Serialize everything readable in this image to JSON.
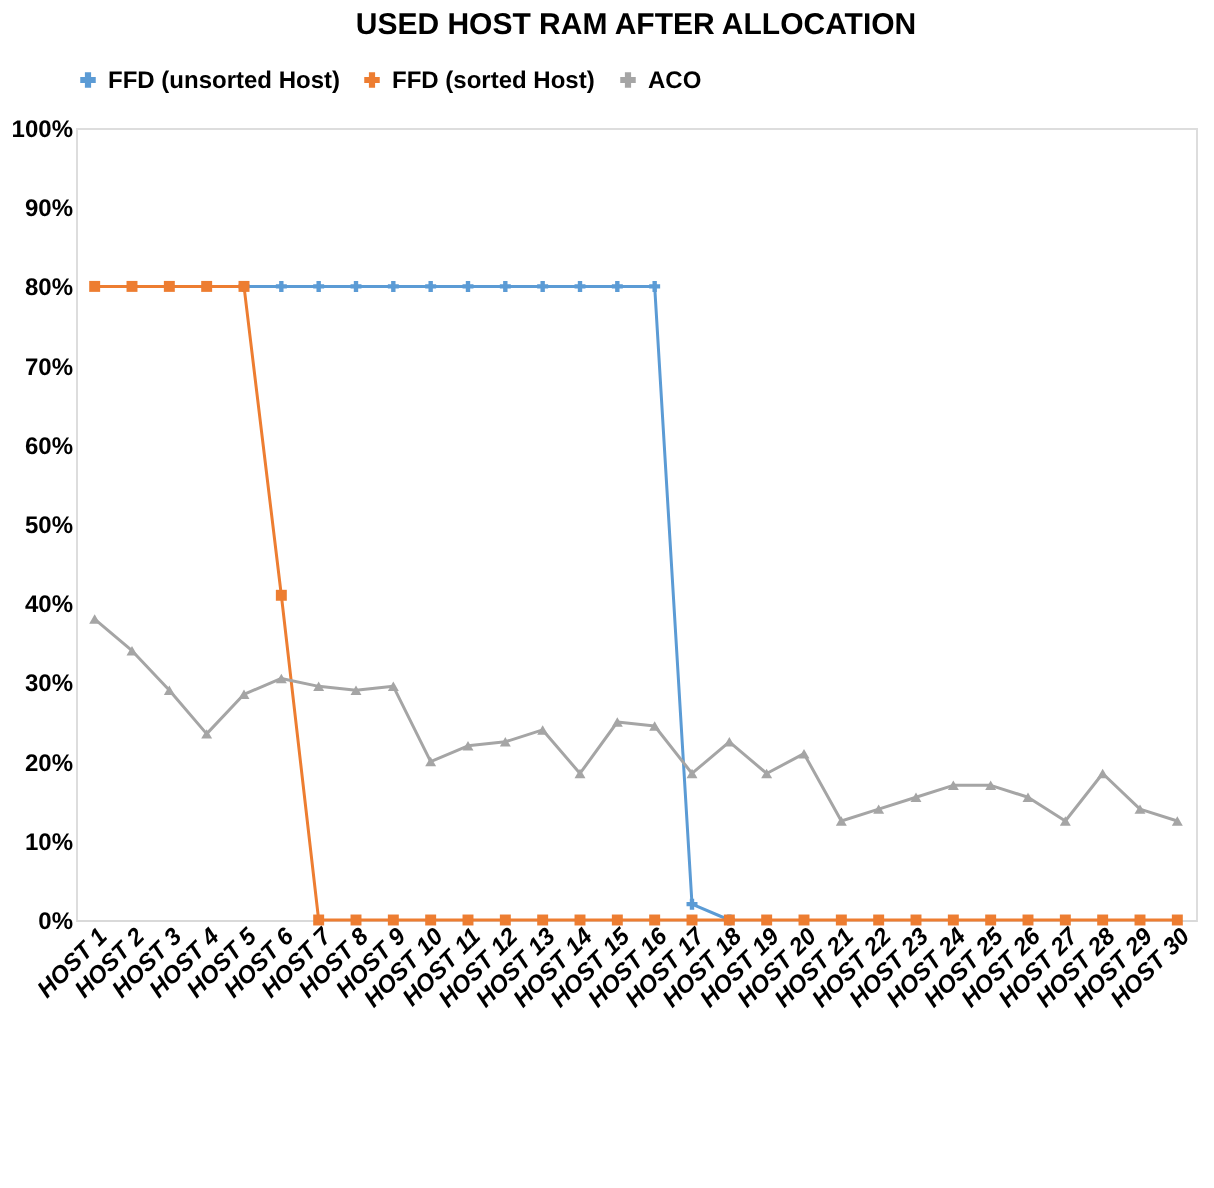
{
  "chart_data": {
    "type": "line",
    "title": "USED HOST RAM AFTER ALLOCATION",
    "categories": [
      "HOST 1",
      "HOST 2",
      "HOST 3",
      "HOST 4",
      "HOST 5",
      "HOST 6",
      "HOST 7",
      "HOST 8",
      "HOST 9",
      "HOST 10",
      "HOST 11",
      "HOST 12",
      "HOST 13",
      "HOST 14",
      "HOST 15",
      "HOST 16",
      "HOST 17",
      "HOST 18",
      "HOST 19",
      "HOST 20",
      "HOST 21",
      "HOST 22",
      "HOST 23",
      "HOST 24",
      "HOST 25",
      "HOST 26",
      "HOST 27",
      "HOST 28",
      "HOST 29",
      "HOST 30"
    ],
    "series": [
      {
        "name": "FFD (unsorted Host)",
        "color": "#5b9bd5",
        "marker": "cross",
        "values": [
          null,
          null,
          null,
          null,
          80,
          80,
          80,
          80,
          80,
          80,
          80,
          80,
          80,
          80,
          80,
          80,
          2,
          0,
          null,
          null,
          null,
          null,
          null,
          null,
          null,
          null,
          null,
          null,
          null,
          null
        ]
      },
      {
        "name": "FFD (sorted Host)",
        "color": "#ed7d31",
        "marker": "square",
        "values": [
          80,
          80,
          80,
          80,
          80,
          41,
          0,
          0,
          0,
          0,
          0,
          0,
          0,
          0,
          0,
          0,
          0,
          0,
          0,
          0,
          0,
          0,
          0,
          0,
          0,
          0,
          0,
          0,
          0,
          0
        ]
      },
      {
        "name": "ACO",
        "color": "#a5a5a5",
        "marker": "triangle",
        "values": [
          38,
          34,
          29,
          23.5,
          28.5,
          30.5,
          29.5,
          29,
          29.5,
          20,
          22,
          22.5,
          24,
          18.5,
          25,
          24.5,
          18.5,
          22.5,
          18.5,
          21,
          12.5,
          14,
          15.5,
          17,
          17,
          15.5,
          12.5,
          18.5,
          14,
          12.5
        ]
      }
    ],
    "ylim": [
      0,
      100
    ],
    "yticks": [
      {
        "value": 0,
        "label": "0%"
      },
      {
        "value": 10,
        "label": "10%"
      },
      {
        "value": 20,
        "label": "20%"
      },
      {
        "value": 30,
        "label": "30%"
      },
      {
        "value": 40,
        "label": "40%"
      },
      {
        "value": 50,
        "label": "50%"
      },
      {
        "value": 60,
        "label": "60%"
      },
      {
        "value": 70,
        "label": "70%"
      },
      {
        "value": 80,
        "label": "80%"
      },
      {
        "value": 90,
        "label": "90%"
      },
      {
        "value": 100,
        "label": "100%"
      }
    ],
    "grid": false,
    "legend": "top"
  }
}
